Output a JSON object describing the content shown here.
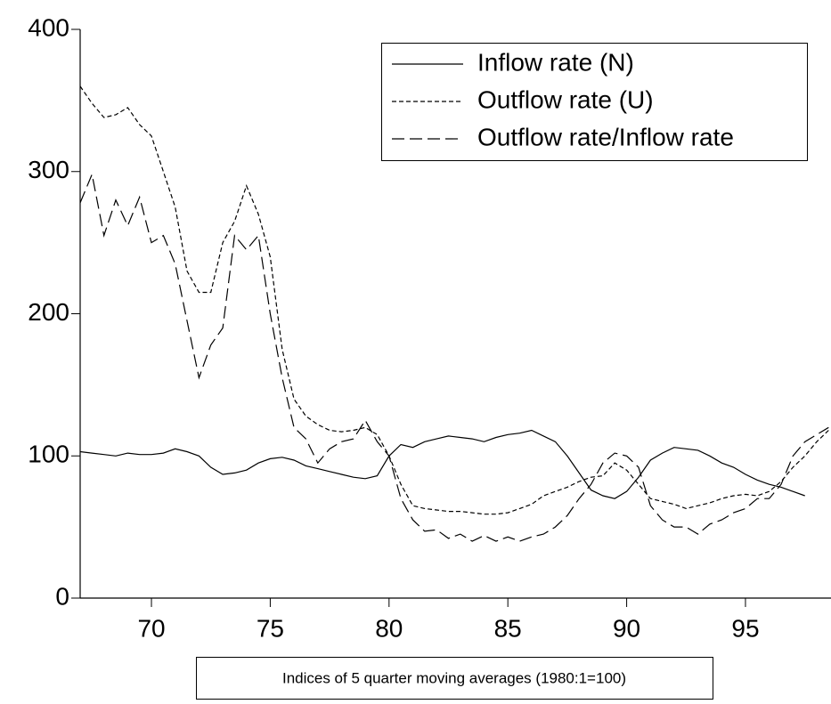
{
  "chart_data": {
    "type": "line",
    "caption": "Indices of 5 quarter moving averages (1980:1=100)",
    "x": [
      67,
      67.5,
      68,
      68.5,
      69,
      69.5,
      70,
      70.5,
      71,
      71.5,
      72,
      72.5,
      73,
      73.5,
      74,
      74.5,
      75,
      75.5,
      76,
      76.5,
      77,
      77.5,
      78,
      78.5,
      79,
      79.5,
      80,
      80.5,
      81,
      81.5,
      82,
      82.5,
      83,
      83.5,
      84,
      84.5,
      85,
      85.5,
      86,
      86.5,
      87,
      87.5,
      88,
      88.5,
      89,
      89.5,
      90,
      90.5,
      91,
      91.5,
      92,
      92.5,
      93,
      93.5,
      94,
      94.5,
      95,
      95.5,
      96,
      96.5,
      97,
      97.5,
      98,
      98.5
    ],
    "series": [
      {
        "name": "Inflow rate (N)",
        "color": "#000000",
        "dash": "none",
        "values": [
          103,
          102,
          101,
          100,
          102,
          101,
          101,
          102,
          105,
          103,
          100,
          92,
          87,
          88,
          90,
          95,
          98,
          99,
          97,
          93,
          91,
          89,
          87,
          85,
          84,
          86,
          100,
          108,
          106,
          110,
          112,
          114,
          113,
          112,
          110,
          113,
          115,
          116,
          118,
          114,
          110,
          100,
          88,
          76,
          72,
          70,
          75,
          85,
          97,
          102,
          106,
          105,
          104,
          100,
          95,
          92,
          87,
          83,
          80,
          78,
          75,
          72,
          null,
          null
        ]
      },
      {
        "name": "Outflow rate (U)",
        "color": "#000000",
        "dash": "5,3",
        "values": [
          360,
          348,
          338,
          340,
          345,
          333,
          325,
          300,
          275,
          230,
          215,
          215,
          250,
          265,
          290,
          270,
          240,
          175,
          140,
          128,
          122,
          118,
          117,
          118,
          120,
          115,
          100,
          80,
          65,
          63,
          62,
          61,
          61,
          60,
          59,
          59,
          60,
          63,
          66,
          72,
          75,
          78,
          82,
          85,
          86,
          95,
          90,
          80,
          70,
          68,
          66,
          63,
          65,
          67,
          70,
          72,
          73,
          72,
          75,
          82,
          92,
          100,
          110,
          118
        ]
      },
      {
        "name": "Outflow rate/Inflow rate",
        "color": "#000000",
        "dash": "14,6",
        "values": [
          278,
          298,
          255,
          280,
          262,
          282,
          250,
          255,
          235,
          195,
          155,
          178,
          190,
          255,
          245,
          255,
          200,
          155,
          120,
          112,
          95,
          105,
          110,
          112,
          125,
          110,
          100,
          70,
          55,
          47,
          48,
          42,
          45,
          40,
          44,
          40,
          43,
          40,
          43,
          45,
          50,
          58,
          70,
          80,
          95,
          102,
          100,
          92,
          65,
          55,
          50,
          50,
          45,
          52,
          55,
          60,
          63,
          70,
          70,
          80,
          100,
          110,
          115,
          120
        ]
      }
    ],
    "xlim": [
      67,
      98.6
    ],
    "xticks": [
      70,
      75,
      80,
      85,
      90,
      95
    ],
    "ylim": [
      0,
      400
    ],
    "yticks": [
      0,
      100,
      200,
      300,
      400
    ],
    "grid": false,
    "legend": "upper right"
  }
}
